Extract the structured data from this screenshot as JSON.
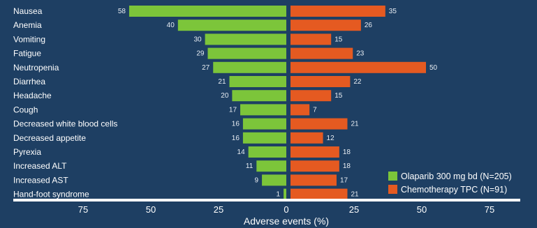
{
  "chart_data": {
    "type": "bar",
    "orientation": "horizontal-diverging",
    "categories": [
      "Nausea",
      "Anemia",
      "Vomiting",
      "Fatigue",
      "Neutropenia",
      "Diarrhea",
      "Headache",
      "Cough",
      "Decreased white blood cells",
      "Decreased appetite",
      "Pyrexia",
      "Increased ALT",
      "Increased AST",
      "Hand-foot syndrome"
    ],
    "series": [
      {
        "name": "Olaparib 300 mg bd (N=205)",
        "side": "left",
        "color": "#7cc53a",
        "values": [
          58,
          40,
          30,
          29,
          27,
          21,
          20,
          17,
          16,
          16,
          14,
          11,
          9,
          1
        ]
      },
      {
        "name": "Chemotherapy TPC (N=91)",
        "side": "right",
        "color": "#e55a21",
        "values": [
          35,
          26,
          15,
          23,
          50,
          22,
          15,
          7,
          21,
          12,
          18,
          18,
          17,
          21
        ]
      }
    ],
    "xlabel": "Adverse events (%)",
    "xticks": [
      "75",
      "50",
      "25",
      "0",
      "25",
      "50",
      "75"
    ],
    "xlim": [
      -75,
      75
    ],
    "legend_position": "bottom-right",
    "grid": false
  }
}
